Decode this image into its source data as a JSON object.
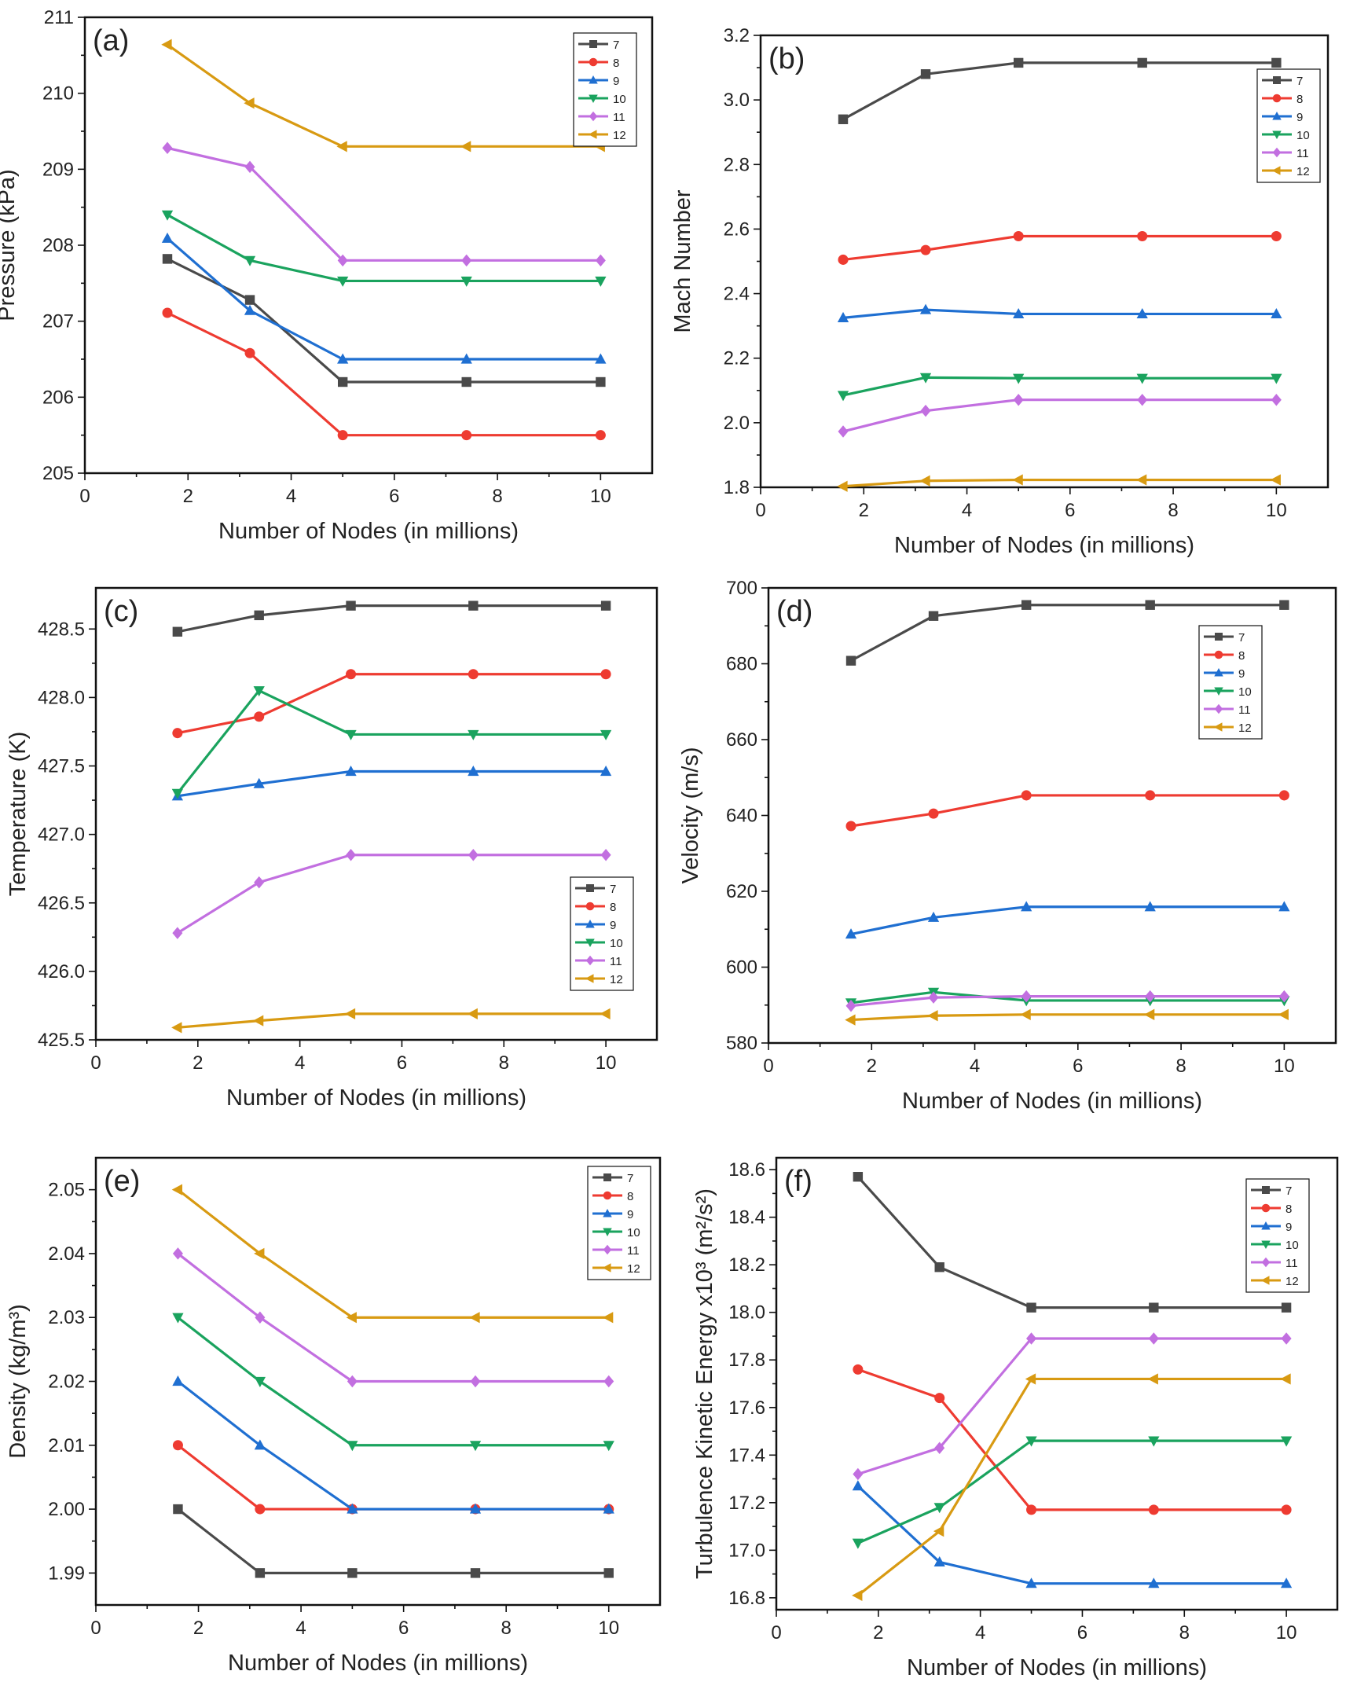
{
  "series_names": [
    "7",
    "8",
    "9",
    "10",
    "11",
    "12"
  ],
  "colors": {
    "7": "#4a4a4a",
    "8": "#ee3b31",
    "9": "#1f6fd1",
    "10": "#1aa35e",
    "11": "#c26fe0",
    "12": "#d89a12"
  },
  "markers": {
    "7": "square",
    "8": "circle",
    "9": "triangle-up",
    "10": "triangle-down",
    "11": "diamond",
    "12": "triangle-left"
  },
  "chart_data": [
    {
      "id": "a",
      "panel_label": "(a)",
      "type": "line",
      "xlabel": "Number of Nodes (in millions)",
      "ylabel": "Pressure (kPa)",
      "xlim": [
        0,
        11
      ],
      "ylim": [
        205,
        211
      ],
      "xticks": [
        0,
        2,
        4,
        6,
        8,
        10
      ],
      "yticks": [
        205,
        206,
        207,
        208,
        209,
        210,
        211
      ],
      "ytick_labels": [
        "205",
        "206",
        "207",
        "208",
        "209",
        "210",
        "211"
      ],
      "x": [
        1.6,
        3.2,
        5.0,
        7.4,
        10.0
      ],
      "legend_loc": "top-right",
      "series": [
        {
          "name": "7",
          "values": [
            207.82,
            207.28,
            206.2,
            206.2,
            206.2
          ]
        },
        {
          "name": "8",
          "values": [
            207.11,
            206.58,
            205.5,
            205.5,
            205.5
          ]
        },
        {
          "name": "9",
          "values": [
            208.09,
            207.14,
            206.5,
            206.5,
            206.5
          ]
        },
        {
          "name": "10",
          "values": [
            208.4,
            207.8,
            207.53,
            207.53,
            207.53
          ]
        },
        {
          "name": "11",
          "values": [
            209.28,
            209.03,
            207.8,
            207.8,
            207.8
          ]
        },
        {
          "name": "12",
          "values": [
            210.64,
            209.87,
            209.3,
            209.3,
            209.3
          ]
        }
      ]
    },
    {
      "id": "b",
      "panel_label": "(b)",
      "type": "line",
      "xlabel": "Number of Nodes (in millions)",
      "ylabel": "Mach Number",
      "xlim": [
        0,
        11
      ],
      "ylim": [
        1.8,
        3.2
      ],
      "xticks": [
        0,
        2,
        4,
        6,
        8,
        10
      ],
      "yticks": [
        1.8,
        2.0,
        2.2,
        2.4,
        2.6,
        2.8,
        3.0,
        3.2
      ],
      "ytick_labels": [
        "1.8",
        "2.0",
        "2.2",
        "2.4",
        "2.6",
        "2.8",
        "3.0",
        "3.2"
      ],
      "x": [
        1.6,
        3.2,
        5.0,
        7.4,
        10.0
      ],
      "legend_loc": "top-right",
      "series": [
        {
          "name": "7",
          "values": [
            2.94,
            3.08,
            3.115,
            3.115,
            3.115
          ]
        },
        {
          "name": "8",
          "values": [
            2.505,
            2.535,
            2.578,
            2.578,
            2.578
          ]
        },
        {
          "name": "9",
          "values": [
            2.325,
            2.35,
            2.337,
            2.337,
            2.337
          ]
        },
        {
          "name": "10",
          "values": [
            2.085,
            2.14,
            2.138,
            2.138,
            2.138
          ]
        },
        {
          "name": "11",
          "values": [
            1.973,
            2.037,
            2.071,
            2.071,
            2.071
          ]
        },
        {
          "name": "12",
          "values": [
            1.803,
            1.82,
            1.823,
            1.823,
            1.823
          ]
        }
      ]
    },
    {
      "id": "c",
      "panel_label": "(c)",
      "type": "line",
      "xlabel": "Number of Nodes (in millions)",
      "ylabel": "Temperature (K)",
      "xlim": [
        0,
        11
      ],
      "ylim": [
        425.5,
        428.8
      ],
      "xticks": [
        0,
        2,
        4,
        6,
        8,
        10
      ],
      "yticks": [
        425.5,
        426.0,
        426.5,
        427.0,
        427.5,
        428.0,
        428.5
      ],
      "ytick_labels": [
        "425.5",
        "426.0",
        "426.5",
        "427.0",
        "427.5",
        "428.0",
        "428.5"
      ],
      "x": [
        1.6,
        3.2,
        5.0,
        7.4,
        10.0
      ],
      "legend_loc": "center-right",
      "series": [
        {
          "name": "7",
          "values": [
            428.48,
            428.6,
            428.67,
            428.67,
            428.67
          ]
        },
        {
          "name": "8",
          "values": [
            427.74,
            427.86,
            428.17,
            428.17,
            428.17
          ]
        },
        {
          "name": "9",
          "values": [
            427.28,
            427.37,
            427.46,
            427.46,
            427.46
          ]
        },
        {
          "name": "10",
          "values": [
            427.3,
            428.05,
            427.73,
            427.73,
            427.73
          ]
        },
        {
          "name": "11",
          "values": [
            426.28,
            426.65,
            426.85,
            426.85,
            426.85
          ]
        },
        {
          "name": "12",
          "values": [
            425.59,
            425.64,
            425.69,
            425.69,
            425.69
          ]
        }
      ]
    },
    {
      "id": "d",
      "panel_label": "(d)",
      "type": "line",
      "xlabel": "Number of Nodes (in millions)",
      "ylabel": "Velocity (m/s)",
      "xlim": [
        0,
        11
      ],
      "ylim": [
        580,
        700
      ],
      "xticks": [
        0,
        2,
        4,
        6,
        8,
        10
      ],
      "yticks": [
        580,
        600,
        620,
        640,
        660,
        680,
        700
      ],
      "ytick_labels": [
        "580",
        "600",
        "620",
        "640",
        "660",
        "680",
        "700"
      ],
      "x": [
        1.6,
        3.2,
        5.0,
        7.4,
        10.0
      ],
      "legend_loc": "top-right",
      "series": [
        {
          "name": "7",
          "values": [
            680.8,
            692.6,
            695.5,
            695.5,
            695.5
          ]
        },
        {
          "name": "8",
          "values": [
            637.2,
            640.5,
            645.3,
            645.3,
            645.3
          ]
        },
        {
          "name": "9",
          "values": [
            608.7,
            613.1,
            615.9,
            615.9,
            615.9
          ]
        },
        {
          "name": "10",
          "values": [
            590.6,
            593.4,
            591.2,
            591.2,
            591.2
          ]
        },
        {
          "name": "11",
          "values": [
            589.8,
            592.0,
            592.3,
            592.3,
            592.3
          ]
        },
        {
          "name": "12",
          "values": [
            586.1,
            587.2,
            587.5,
            587.5,
            587.5
          ]
        }
      ]
    },
    {
      "id": "e",
      "panel_label": "(e)",
      "type": "line",
      "xlabel": "Number of Nodes (in millions)",
      "ylabel": "Density (kg/m³)",
      "xlim": [
        0,
        11
      ],
      "ylim": [
        1.985,
        2.055
      ],
      "xticks": [
        0,
        2,
        4,
        6,
        8,
        10
      ],
      "yticks": [
        1.99,
        2.0,
        2.01,
        2.02,
        2.03,
        2.04,
        2.05
      ],
      "ytick_labels": [
        "1.99",
        "2.00",
        "2.01",
        "2.02",
        "2.03",
        "2.04",
        "2.05"
      ],
      "x": [
        1.6,
        3.2,
        5.0,
        7.4,
        10.0
      ],
      "legend_loc": "top-right",
      "series": [
        {
          "name": "7",
          "values": [
            2.0,
            1.99,
            1.99,
            1.99,
            1.99
          ]
        },
        {
          "name": "8",
          "values": [
            2.01,
            2.0,
            2.0,
            2.0,
            2.0
          ]
        },
        {
          "name": "9",
          "values": [
            2.02,
            2.01,
            2.0,
            2.0,
            2.0
          ]
        },
        {
          "name": "10",
          "values": [
            2.03,
            2.02,
            2.01,
            2.01,
            2.01
          ]
        },
        {
          "name": "11",
          "values": [
            2.04,
            2.03,
            2.02,
            2.02,
            2.02
          ]
        },
        {
          "name": "12",
          "values": [
            2.05,
            2.04,
            2.03,
            2.03,
            2.03
          ]
        }
      ]
    },
    {
      "id": "f",
      "panel_label": "(f)",
      "type": "line",
      "xlabel": "Number of Nodes (in millions)",
      "ylabel": "Turbulence Kinetic Energy x10³ (m²/s²)",
      "xlim": [
        0,
        11
      ],
      "ylim": [
        16.75,
        18.65
      ],
      "xticks": [
        0,
        2,
        4,
        6,
        8,
        10
      ],
      "yticks": [
        16.8,
        17.0,
        17.2,
        17.4,
        17.6,
        17.8,
        18.0,
        18.2,
        18.4,
        18.6
      ],
      "ytick_labels": [
        "16.8",
        "17.0",
        "17.2",
        "17.4",
        "17.6",
        "17.8",
        "18.0",
        "18.2",
        "18.4",
        "18.6"
      ],
      "x": [
        1.6,
        3.2,
        5.0,
        7.4,
        10.0
      ],
      "legend_loc": "top-right",
      "series": [
        {
          "name": "7",
          "values": [
            18.57,
            18.19,
            18.02,
            18.02,
            18.02
          ]
        },
        {
          "name": "8",
          "values": [
            17.76,
            17.64,
            17.17,
            17.17,
            17.17
          ]
        },
        {
          "name": "9",
          "values": [
            17.27,
            16.95,
            16.86,
            16.86,
            16.86
          ]
        },
        {
          "name": "10",
          "values": [
            17.03,
            17.18,
            17.46,
            17.46,
            17.46
          ]
        },
        {
          "name": "11",
          "values": [
            17.32,
            17.43,
            17.89,
            17.89,
            17.89
          ]
        },
        {
          "name": "12",
          "values": [
            16.81,
            17.08,
            17.72,
            17.72,
            17.72
          ]
        }
      ]
    }
  ]
}
